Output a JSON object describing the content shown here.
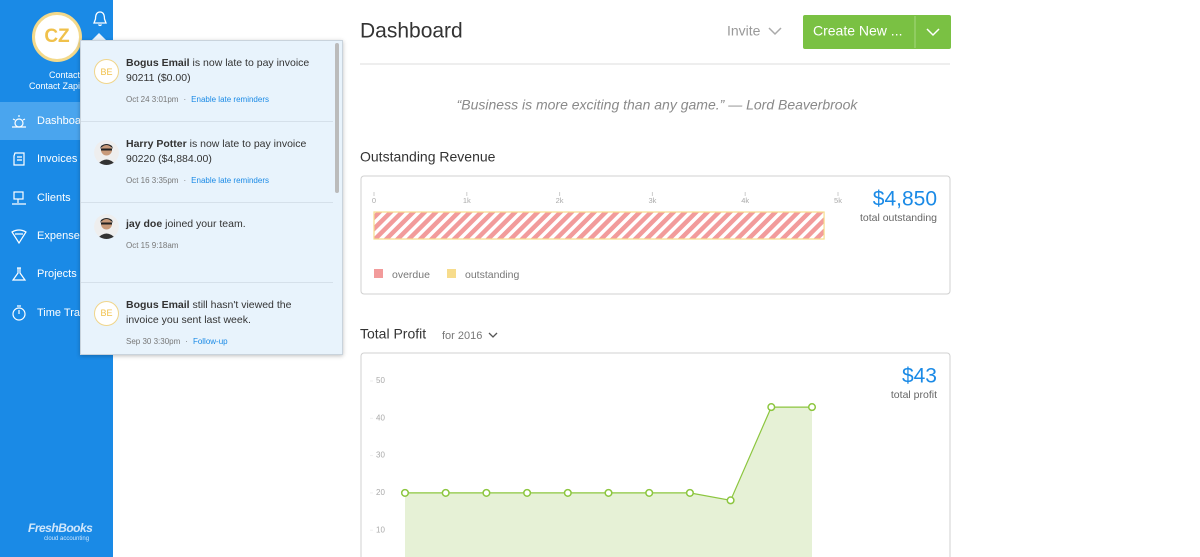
{
  "sidebar": {
    "avatar": "CZ",
    "contact_label": "Contact",
    "contact_name": "Contact Zapier",
    "nav": [
      "Dashboard",
      "Invoices",
      "Clients",
      "Expenses",
      "Projects",
      "Time Tracking"
    ],
    "logo": "FreshBooks",
    "logo_tagline": "cloud accounting"
  },
  "notifications": [
    {
      "avatar": "BE",
      "name": "Bogus Email",
      "text": " is now late to pay invoice 90211 ($0.00)",
      "time": "Oct 24 3:01pm",
      "action": "Enable late reminders"
    },
    {
      "name": "Harry Potter",
      "text": " is now late to pay invoice 90220 ($4,884.00)",
      "time": "Oct 16 3:35pm",
      "action": "Enable late reminders"
    },
    {
      "name": "jay doe",
      "text": " joined your team.",
      "time": "Oct 15 9:18am"
    },
    {
      "avatar": "BE",
      "name": "Bogus Email",
      "text": " still hasn't viewed the invoice you sent last week.",
      "time": "Sep 30 3:30pm",
      "action": "Follow-up"
    }
  ],
  "header": {
    "title": "Dashboard",
    "invite": "Invite",
    "create": "Create New ..."
  },
  "quote": "“Business is more exciting than any game.” — Lord Beaverbrook",
  "outstanding_revenue": {
    "type": "bar",
    "title": "Outstanding Revenue",
    "xlim": [
      0,
      5000
    ],
    "xticks": [
      {
        "value": 0,
        "label": "0"
      },
      {
        "value": 1000,
        "label": "1k"
      },
      {
        "value": 2000,
        "label": "2k"
      },
      {
        "value": 3000,
        "label": "3k"
      },
      {
        "value": 4000,
        "label": "4k"
      },
      {
        "value": 5000,
        "label": "5k"
      }
    ],
    "series": [
      {
        "name": "overdue",
        "color": "#f29b9b",
        "values": [
          4850
        ]
      },
      {
        "name": "outstanding",
        "color": "#f7dc8c",
        "values": [
          0
        ]
      }
    ],
    "total": "$4,850",
    "total_label": "total outstanding"
  },
  "total_profit": {
    "type": "line",
    "title": "Total Profit",
    "period": "for 2016",
    "categories": [
      null,
      null,
      null,
      null,
      null,
      null,
      null,
      null,
      null,
      null,
      null
    ],
    "values": [
      20,
      20,
      20,
      20,
      20,
      20,
      20,
      20,
      18,
      43,
      43
    ],
    "color": "#8cc63f",
    "ylim": [
      0,
      50
    ],
    "yticks": [
      10,
      20,
      30,
      40,
      50
    ],
    "total": "$43",
    "total_label": "total profit"
  }
}
